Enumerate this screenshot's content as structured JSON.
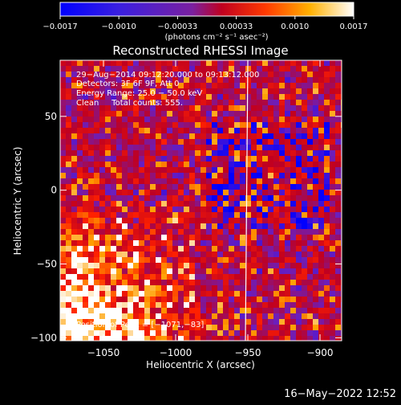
{
  "chart_data": {
    "type": "heatmap",
    "title": "Reconstructed RHESSI Image",
    "xlabel": "Heliocentric X (arcsec)",
    "ylabel": "Heliocentric Y (arcsec)",
    "xlim": [
      -1080,
      -885
    ],
    "ylim": [
      -102,
      88
    ],
    "x_ticks": [
      -1050,
      -1000,
      -950,
      -900
    ],
    "x_tick_labels": [
      "−1050",
      "−1000",
      "−950",
      "−900"
    ],
    "y_ticks": [
      50,
      0,
      -50,
      -100
    ],
    "y_tick_labels": [
      "50",
      "0",
      "−50",
      "−100"
    ],
    "colorbar": {
      "range": [
        -0.0017,
        0.0017
      ],
      "tick_labels": [
        "−0.0017",
        "−0.0010",
        "−0.00033",
        "0.00033",
        "0.0010",
        "0.0017"
      ],
      "unit_label": "(photons cm⁻² s⁻¹ asec⁻²)",
      "colors": [
        "#0000ff",
        "#6a1fbf",
        "#c00020",
        "#ff2000",
        "#ffa000",
        "#ffffff"
      ]
    },
    "annotations": {
      "time_range": "29−Aug−2014 09:12:20.000 to 09:13:12.000",
      "detectors": "Detectors: 3F 6F 9F, Att 0",
      "energy_range": "Energy Range: 25.0 − 50.0 keV",
      "method_counts": "Clean     Total counts: 555.",
      "peak_position": "Position of Peak = [−1071,−83]"
    },
    "limb_line_x": -950
  },
  "datestamp": "16−May−2022 12:52"
}
